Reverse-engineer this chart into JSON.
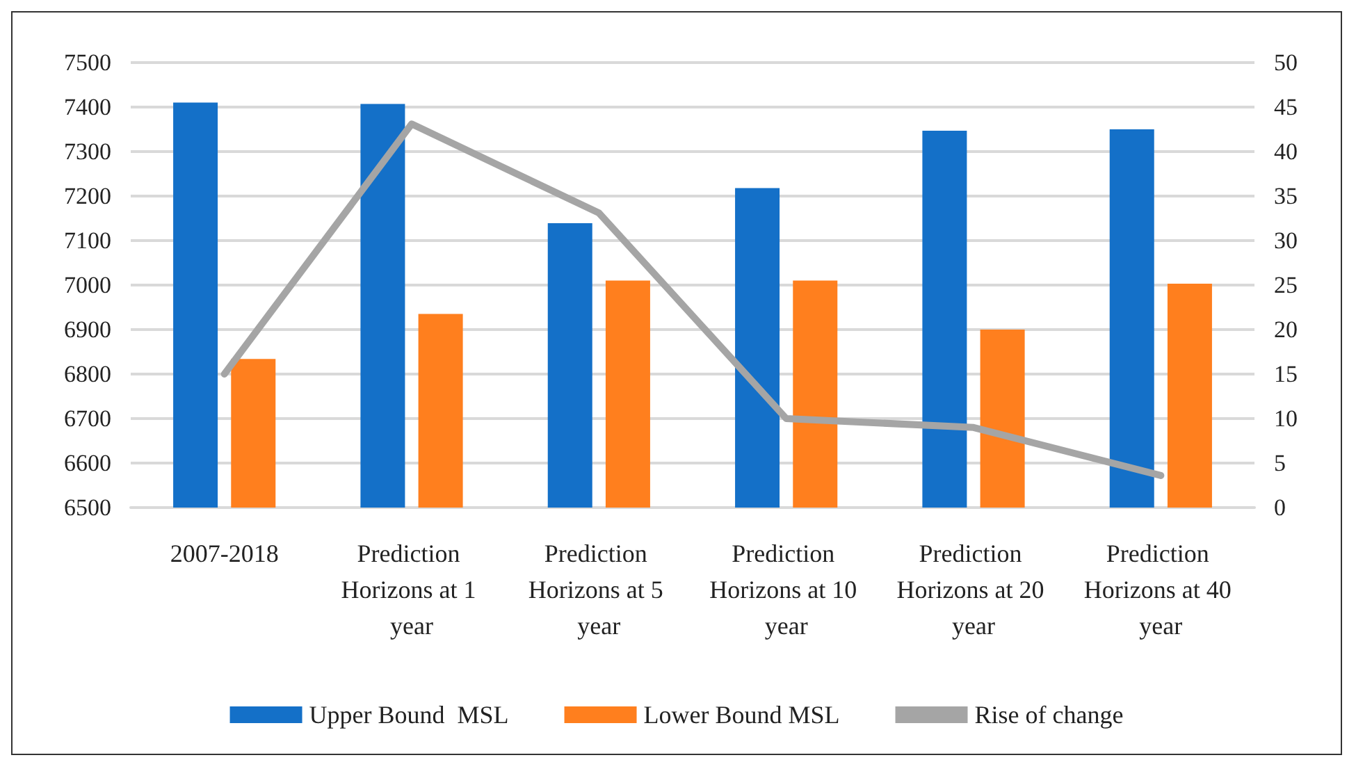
{
  "chart_data": {
    "type": "bar",
    "categories": [
      "2007-2018",
      "Prediction Horizons at 1 year",
      "Prediction Horizons at 5 year",
      "Prediction Horizons at 10 year",
      "Prediction Horizons at 20 year",
      "Prediction Horizons at 40 year"
    ],
    "series": [
      {
        "name": "Upper Bound  MSL",
        "color": "#1470c8",
        "values": [
          7410,
          7407,
          7139,
          7218,
          7347,
          7350
        ]
      },
      {
        "name": "Lower Bound MSL",
        "color": "#ff7f1e",
        "values": [
          6834,
          6935,
          7010,
          7010,
          6900,
          7003
        ]
      },
      {
        "name": "Rise of change",
        "type": "line",
        "axis": "y2",
        "color": "#a5a5a5",
        "values": [
          15,
          43.1,
          33.1,
          10,
          9,
          3.6
        ]
      }
    ],
    "ylim": [
      6500,
      7500
    ],
    "yticks": [
      6500,
      6600,
      6700,
      6800,
      6900,
      7000,
      7100,
      7200,
      7300,
      7400,
      7500
    ],
    "y2lim": [
      0,
      50
    ],
    "y2ticks": [
      0,
      5,
      10,
      15,
      20,
      25,
      30,
      35,
      40,
      45,
      50
    ],
    "grid": "y",
    "legend": "bottom",
    "marker": "none"
  }
}
